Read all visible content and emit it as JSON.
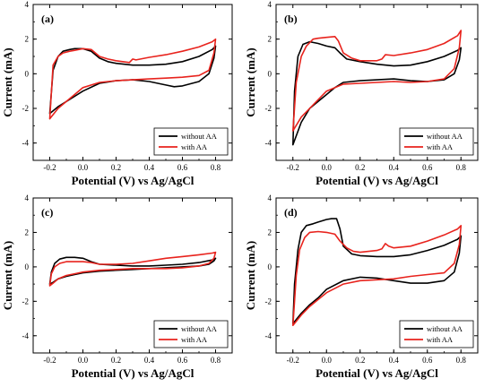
{
  "chart_data": [
    {
      "type": "line",
      "panel_label": "(a)",
      "xlabel": "Potential (V) vs Ag/AgCl",
      "ylabel": "Current (mA)",
      "xlim": [
        -0.3,
        0.9
      ],
      "ylim": [
        -5,
        4
      ],
      "xticks": [
        "-0.2",
        "0.0",
        "0.2",
        "0.4",
        "0.6",
        "0.8"
      ],
      "yticks": [
        "-4",
        "-2",
        "0",
        "2",
        "4"
      ],
      "legend_position": "bottom-right",
      "series": [
        {
          "name": "without AA",
          "color": "#000000",
          "x": [
            -0.2,
            -0.18,
            -0.15,
            -0.12,
            -0.08,
            -0.05,
            0.0,
            0.05,
            0.1,
            0.15,
            0.2,
            0.3,
            0.4,
            0.5,
            0.6,
            0.7,
            0.78,
            0.8,
            0.79,
            0.76,
            0.7,
            0.6,
            0.55,
            0.5,
            0.4,
            0.3,
            0.2,
            0.1,
            0.0,
            -0.05,
            -0.1,
            -0.15,
            -0.2
          ],
          "y": [
            -2.3,
            0.2,
            1.0,
            1.3,
            1.4,
            1.45,
            1.45,
            1.3,
            0.9,
            0.7,
            0.6,
            0.5,
            0.5,
            0.55,
            0.7,
            1.0,
            1.4,
            1.6,
            0.9,
            0.0,
            -0.45,
            -0.7,
            -0.75,
            -0.65,
            -0.45,
            -0.35,
            -0.4,
            -0.55,
            -1.0,
            -1.3,
            -1.6,
            -1.9,
            -2.3
          ]
        },
        {
          "name": "with AA",
          "color": "#e8231d",
          "x": [
            -0.2,
            -0.18,
            -0.15,
            -0.12,
            -0.08,
            -0.05,
            0.0,
            0.05,
            0.1,
            0.15,
            0.2,
            0.28,
            0.3,
            0.32,
            0.4,
            0.5,
            0.6,
            0.7,
            0.78,
            0.8,
            0.79,
            0.76,
            0.7,
            0.6,
            0.5,
            0.4,
            0.3,
            0.2,
            0.1,
            0.0,
            -0.05,
            -0.1,
            -0.15,
            -0.2
          ],
          "y": [
            -2.6,
            0.5,
            1.0,
            1.2,
            1.3,
            1.35,
            1.45,
            1.4,
            1.0,
            0.85,
            0.75,
            0.65,
            0.85,
            0.8,
            0.95,
            1.1,
            1.3,
            1.55,
            1.85,
            2.0,
            1.2,
            0.2,
            -0.1,
            -0.2,
            -0.25,
            -0.3,
            -0.35,
            -0.4,
            -0.5,
            -0.8,
            -1.2,
            -1.6,
            -2.0,
            -2.6
          ]
        }
      ]
    },
    {
      "type": "line",
      "panel_label": "(b)",
      "xlabel": "Potential (V) vs Ag/AgCl",
      "ylabel": "Current (mA)",
      "xlim": [
        -0.3,
        0.9
      ],
      "ylim": [
        -5,
        4
      ],
      "xticks": [
        "-0.2",
        "0.0",
        "0.2",
        "0.4",
        "0.6",
        "0.8"
      ],
      "yticks": [
        "-4",
        "-2",
        "0",
        "2",
        "4"
      ],
      "legend_position": "bottom-right",
      "series": [
        {
          "name": "without AA",
          "color": "#000000",
          "x": [
            -0.2,
            -0.19,
            -0.17,
            -0.14,
            -0.1,
            -0.05,
            0.0,
            0.05,
            0.08,
            0.12,
            0.2,
            0.3,
            0.4,
            0.5,
            0.6,
            0.7,
            0.78,
            0.8,
            0.79,
            0.76,
            0.7,
            0.6,
            0.5,
            0.4,
            0.3,
            0.2,
            0.15,
            0.1,
            0.05,
            0.0,
            -0.05,
            -0.1,
            -0.15,
            -0.2
          ],
          "y": [
            -4.1,
            -1.0,
            1.0,
            1.7,
            1.85,
            1.75,
            1.6,
            1.5,
            1.2,
            0.85,
            0.7,
            0.55,
            0.45,
            0.5,
            0.7,
            1.0,
            1.35,
            1.5,
            0.8,
            0.0,
            -0.35,
            -0.45,
            -0.4,
            -0.3,
            -0.35,
            -0.4,
            -0.45,
            -0.5,
            -0.8,
            -1.2,
            -1.6,
            -2.0,
            -2.8,
            -4.1
          ]
        },
        {
          "name": "with AA",
          "color": "#e8231d",
          "x": [
            -0.2,
            -0.18,
            -0.15,
            -0.12,
            -0.08,
            -0.05,
            0.0,
            0.05,
            0.07,
            0.1,
            0.15,
            0.2,
            0.3,
            0.33,
            0.35,
            0.4,
            0.5,
            0.6,
            0.7,
            0.78,
            0.8,
            0.79,
            0.76,
            0.7,
            0.6,
            0.5,
            0.4,
            0.3,
            0.2,
            0.1,
            0.0,
            -0.05,
            -0.1,
            -0.15,
            -0.2
          ],
          "y": [
            -3.3,
            -0.5,
            1.0,
            1.6,
            2.0,
            2.05,
            2.1,
            2.15,
            1.9,
            1.2,
            0.9,
            0.75,
            0.75,
            0.85,
            1.1,
            1.05,
            1.2,
            1.4,
            1.75,
            2.2,
            2.5,
            1.5,
            0.3,
            -0.3,
            -0.45,
            -0.5,
            -0.45,
            -0.5,
            -0.55,
            -0.6,
            -1.0,
            -1.5,
            -2.0,
            -2.5,
            -3.3
          ]
        }
      ]
    },
    {
      "type": "line",
      "panel_label": "(c)",
      "xlabel": "Potential (V) vs Ag/AgCl",
      "ylabel": "Current (mA)",
      "xlim": [
        -0.3,
        0.9
      ],
      "ylim": [
        -5,
        4
      ],
      "xticks": [
        "-0.2",
        "0.0",
        "0.2",
        "0.4",
        "0.6",
        "0.8"
      ],
      "yticks": [
        "-4",
        "-2",
        "0",
        "2",
        "4"
      ],
      "legend_position": "bottom-right",
      "series": [
        {
          "name": "without AA",
          "color": "#000000",
          "x": [
            -0.2,
            -0.19,
            -0.17,
            -0.14,
            -0.1,
            -0.05,
            0.0,
            0.05,
            0.1,
            0.2,
            0.3,
            0.4,
            0.5,
            0.6,
            0.7,
            0.78,
            0.8,
            0.79,
            0.76,
            0.7,
            0.6,
            0.5,
            0.4,
            0.3,
            0.2,
            0.1,
            0.0,
            -0.05,
            -0.1,
            -0.15,
            -0.18,
            -0.2
          ],
          "y": [
            -1.0,
            -0.3,
            0.2,
            0.45,
            0.55,
            0.55,
            0.5,
            0.3,
            0.15,
            0.1,
            0.05,
            0.05,
            0.1,
            0.15,
            0.25,
            0.4,
            0.5,
            0.35,
            0.15,
            0.05,
            0.0,
            -0.05,
            -0.1,
            -0.15,
            -0.2,
            -0.25,
            -0.35,
            -0.45,
            -0.55,
            -0.7,
            -0.9,
            -1.0
          ]
        },
        {
          "name": "with AA",
          "color": "#e8231d",
          "x": [
            -0.2,
            -0.19,
            -0.17,
            -0.14,
            -0.1,
            -0.05,
            0.0,
            0.05,
            0.1,
            0.2,
            0.3,
            0.4,
            0.5,
            0.6,
            0.7,
            0.78,
            0.8,
            0.79,
            0.76,
            0.7,
            0.6,
            0.5,
            0.4,
            0.3,
            0.2,
            0.1,
            0.0,
            -0.05,
            -0.1,
            -0.15,
            -0.18,
            -0.2
          ],
          "y": [
            -1.1,
            -0.4,
            0.0,
            0.2,
            0.3,
            0.3,
            0.3,
            0.25,
            0.15,
            0.15,
            0.2,
            0.35,
            0.5,
            0.6,
            0.7,
            0.8,
            0.85,
            0.5,
            0.2,
            0.05,
            -0.05,
            -0.1,
            -0.1,
            -0.1,
            -0.15,
            -0.2,
            -0.3,
            -0.4,
            -0.5,
            -0.7,
            -0.95,
            -1.1
          ]
        }
      ]
    },
    {
      "type": "line",
      "panel_label": "(d)",
      "xlabel": "Potential (V) vs Ag/AgCl",
      "ylabel": "Current (mA)",
      "xlim": [
        -0.3,
        0.9
      ],
      "ylim": [
        -5,
        4
      ],
      "xticks": [
        "-0.2",
        "0.0",
        "0.2",
        "0.4",
        "0.6",
        "0.8"
      ],
      "yticks": [
        "-4",
        "-2",
        "0",
        "2",
        "4"
      ],
      "legend_position": "bottom-right",
      "series": [
        {
          "name": "without AA",
          "color": "#000000",
          "x": [
            -0.2,
            -0.19,
            -0.17,
            -0.15,
            -0.12,
            -0.08,
            -0.05,
            0.0,
            0.03,
            0.06,
            0.08,
            0.1,
            0.15,
            0.2,
            0.3,
            0.4,
            0.5,
            0.6,
            0.7,
            0.78,
            0.8,
            0.79,
            0.76,
            0.7,
            0.6,
            0.5,
            0.4,
            0.3,
            0.2,
            0.1,
            0.0,
            -0.05,
            -0.1,
            -0.15,
            -0.2
          ],
          "y": [
            -3.3,
            -1.0,
            1.0,
            2.0,
            2.4,
            2.5,
            2.6,
            2.75,
            2.8,
            2.8,
            2.2,
            1.2,
            0.75,
            0.65,
            0.6,
            0.6,
            0.7,
            0.95,
            1.25,
            1.6,
            1.8,
            0.8,
            -0.3,
            -0.8,
            -0.95,
            -0.95,
            -0.8,
            -0.65,
            -0.6,
            -0.8,
            -1.3,
            -1.8,
            -2.2,
            -2.7,
            -3.3
          ]
        },
        {
          "name": "with AA",
          "color": "#e8231d",
          "x": [
            -0.2,
            -0.18,
            -0.16,
            -0.13,
            -0.1,
            -0.05,
            0.0,
            0.05,
            0.08,
            0.12,
            0.16,
            0.2,
            0.3,
            0.33,
            0.35,
            0.37,
            0.4,
            0.5,
            0.6,
            0.7,
            0.78,
            0.8,
            0.79,
            0.76,
            0.7,
            0.6,
            0.5,
            0.4,
            0.3,
            0.2,
            0.1,
            0.0,
            -0.05,
            -0.1,
            -0.15,
            -0.2
          ],
          "y": [
            -3.4,
            -0.5,
            1.0,
            1.7,
            2.0,
            2.05,
            2.0,
            1.9,
            1.5,
            1.1,
            0.9,
            0.85,
            0.95,
            1.05,
            1.35,
            1.2,
            1.1,
            1.2,
            1.5,
            1.85,
            2.2,
            2.4,
            1.3,
            0.2,
            -0.35,
            -0.45,
            -0.55,
            -0.7,
            -0.75,
            -0.8,
            -1.0,
            -1.5,
            -1.9,
            -2.3,
            -2.8,
            -3.4
          ]
        }
      ]
    }
  ]
}
